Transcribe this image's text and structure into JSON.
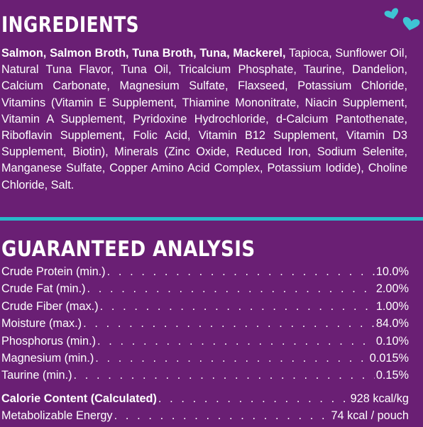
{
  "ingredients": {
    "heading": "INGREDIENTS",
    "bold_text": "Salmon, Salmon Broth, Tuna Broth, Tuna, Mackerel,",
    "text": "Tapioca, Sunflower Oil, Natural Tuna Flavor, Tuna Oil, Tricalcium Phosphate, Taurine, Dandelion, Calcium Carbonate, Magnesium Sulfate, Flaxseed, Potassium Chloride, Vitamins (Vitamin E Supplement, Thiamine Mononitrate, Niacin Supplement, Vitamin A Supplement, Pyridoxine Hydrochloride, d-Calcium Pantothenate, Riboflavin Supplement, Folic Acid, Vitamin B12 Supplement, Vitamin D3 Supplement, Biotin), Minerals (Zinc Oxide, Reduced Iron, Sodium Selenite, Manganese Sulfate, Copper Amino Acid Complex, Potassium Iodide), Choline Chloride, Salt."
  },
  "analysis": {
    "heading": "GUARANTEED ANALYSIS",
    "rows": [
      {
        "label": "Crude Protein (min.)",
        "value": "10.0%"
      },
      {
        "label": "Crude Fat (min.)",
        "value": "2.00%"
      },
      {
        "label": "Crude Fiber (max.)",
        "value": "1.00%"
      },
      {
        "label": "Moisture (max.)",
        "value": "84.0%"
      },
      {
        "label": "Phosphorus (min.)",
        "value": "0.10%"
      },
      {
        "label": "Magnesium (min.)",
        "value": "0.015%"
      },
      {
        "label": "Taurine (min.)",
        "value": "0.15%"
      }
    ],
    "calorie": [
      {
        "label": "Calorie Content (Calculated)",
        "value": "928 kcal/kg"
      },
      {
        "label": "Metabolizable Energy",
        "value": "74 kcal / pouch"
      }
    ]
  },
  "colors": {
    "background": "#6a1f74",
    "accent": "#27b9c9",
    "heart": "#3fc4d4"
  },
  "decorations": [
    "heart-icon",
    "heart-icon"
  ]
}
